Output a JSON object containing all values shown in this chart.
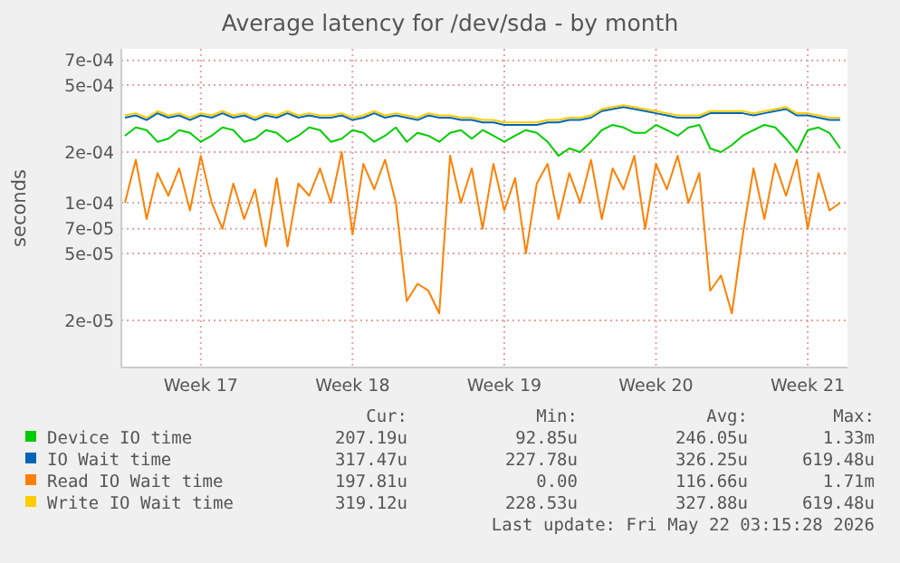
{
  "chart_data": {
    "type": "line",
    "title": "Average latency for /dev/sda - by month",
    "ylabel": "seconds",
    "log": "y",
    "grid": true,
    "legend": "bottom",
    "ylim": [
      1.05e-05,
      0.00082
    ],
    "categories": [
      null,
      null,
      null,
      null,
      null,
      null,
      null,
      "Week 17",
      null,
      null,
      null,
      null,
      null,
      null,
      null,
      null,
      null,
      null,
      null,
      null,
      null,
      "Week 18",
      null,
      null,
      null,
      null,
      null,
      null,
      null,
      null,
      null,
      null,
      null,
      null,
      null,
      "Week 19",
      null,
      null,
      null,
      null,
      null,
      null,
      null,
      null,
      null,
      null,
      null,
      null,
      null,
      "Week 20",
      null,
      null,
      null,
      null,
      null,
      null,
      null,
      null,
      null,
      null,
      null,
      null,
      null,
      "Week 21",
      null,
      null,
      null
    ],
    "yticks": [
      {
        "value": 0.0007,
        "label": "7e-04"
      },
      {
        "value": 0.0005,
        "label": "5e-04"
      },
      {
        "value": 0.0002,
        "label": "2e-04"
      },
      {
        "value": 0.0001,
        "label": "1e-04"
      },
      {
        "value": 7e-05,
        "label": "7e-05"
      },
      {
        "value": 5e-05,
        "label": "5e-05"
      },
      {
        "value": 2e-05,
        "label": "2e-05"
      }
    ],
    "series": [
      {
        "name": "Device IO time",
        "color": "#00cc00",
        "values": [
          0.00025,
          0.00028,
          0.00027,
          0.00023,
          0.00024,
          0.00027,
          0.00026,
          0.00023,
          0.00025,
          0.00028,
          0.00027,
          0.00023,
          0.00024,
          0.00027,
          0.00026,
          0.00023,
          0.00025,
          0.00028,
          0.00027,
          0.00023,
          0.00024,
          0.00027,
          0.00026,
          0.00023,
          0.00025,
          0.00028,
          0.00023,
          0.00026,
          0.00025,
          0.00023,
          0.00026,
          0.00027,
          0.00024,
          0.00027,
          0.00025,
          0.00023,
          0.00025,
          0.00027,
          0.00026,
          0.00023,
          0.00019,
          0.00021,
          0.0002,
          0.00023,
          0.00027,
          0.00029,
          0.00028,
          0.00026,
          0.00026,
          0.00029,
          0.00027,
          0.00025,
          0.00028,
          0.00029,
          0.00021,
          0.0002,
          0.00022,
          0.00025,
          0.00027,
          0.00029,
          0.00028,
          0.00024,
          0.0002,
          0.00027,
          0.00028,
          0.00026,
          0.00021
        ]
      },
      {
        "name": "IO Wait time",
        "color": "#0066b3",
        "values": [
          0.00032,
          0.00033,
          0.00031,
          0.00034,
          0.00032,
          0.00033,
          0.00031,
          0.00033,
          0.00032,
          0.00034,
          0.00032,
          0.00033,
          0.00031,
          0.00033,
          0.00032,
          0.00034,
          0.00032,
          0.00033,
          0.00032,
          0.00032,
          0.00033,
          0.00031,
          0.00032,
          0.00034,
          0.00032,
          0.00033,
          0.00032,
          0.00031,
          0.00033,
          0.00032,
          0.00032,
          0.00031,
          0.00031,
          0.0003,
          0.0003,
          0.00029,
          0.00029,
          0.00029,
          0.00029,
          0.0003,
          0.0003,
          0.00031,
          0.00031,
          0.00032,
          0.00035,
          0.00036,
          0.00037,
          0.00036,
          0.00035,
          0.00034,
          0.00033,
          0.00032,
          0.00032,
          0.00032,
          0.00034,
          0.00034,
          0.00034,
          0.00034,
          0.00033,
          0.00034,
          0.00035,
          0.00036,
          0.00033,
          0.00033,
          0.00032,
          0.00031,
          0.00031
        ]
      },
      {
        "name": "Read IO Wait time",
        "color": "#ff8000",
        "values": [
          0.0001,
          0.00018,
          8e-05,
          0.00015,
          0.00011,
          0.00016,
          9e-05,
          0.00019,
          0.0001,
          7e-05,
          0.00013,
          8e-05,
          0.00012,
          5.5e-05,
          0.00014,
          5.5e-05,
          0.00013,
          0.00011,
          0.00016,
          0.0001,
          0.0002,
          6.5e-05,
          0.00017,
          0.00012,
          0.00018,
          0.0001,
          2.6e-05,
          3.3e-05,
          3e-05,
          2.2e-05,
          0.00019,
          0.0001,
          0.00016,
          7e-05,
          0.00017,
          9e-05,
          0.00014,
          5e-05,
          0.00013,
          0.00017,
          8e-05,
          0.00015,
          0.0001,
          0.00018,
          8e-05,
          0.00016,
          0.00012,
          0.00019,
          7e-05,
          0.00017,
          0.00012,
          0.00019,
          0.0001,
          0.00015,
          3e-05,
          3.7e-05,
          2.2e-05,
          6.4e-05,
          0.00016,
          8e-05,
          0.00017,
          0.00011,
          0.00018,
          7e-05,
          0.00015,
          9e-05,
          0.0001
        ]
      },
      {
        "name": "Write IO Wait time",
        "color": "#ffcc00",
        "values": [
          0.00033,
          0.00034,
          0.00032,
          0.00035,
          0.00033,
          0.00034,
          0.00032,
          0.00034,
          0.00033,
          0.00035,
          0.00033,
          0.00034,
          0.00032,
          0.00034,
          0.00033,
          0.00035,
          0.00033,
          0.00034,
          0.00033,
          0.00033,
          0.00034,
          0.00032,
          0.00033,
          0.00035,
          0.00033,
          0.00034,
          0.00033,
          0.00032,
          0.00034,
          0.00033,
          0.00033,
          0.00032,
          0.00032,
          0.00031,
          0.00031,
          0.0003,
          0.0003,
          0.0003,
          0.0003,
          0.00031,
          0.00031,
          0.00032,
          0.00032,
          0.00033,
          0.00036,
          0.00037,
          0.00038,
          0.00037,
          0.00036,
          0.00035,
          0.00034,
          0.00033,
          0.00033,
          0.00033,
          0.00035,
          0.00035,
          0.00035,
          0.00035,
          0.00034,
          0.00035,
          0.00036,
          0.00037,
          0.00034,
          0.00034,
          0.00033,
          0.00032,
          0.00032
        ]
      }
    ],
    "annotations": [
      "Cur:",
      "Min:",
      "Avg:",
      "Max:",
      "207.19u",
      "92.85u",
      "246.05u",
      "1.33m",
      "317.47u",
      "227.78u",
      "326.25u",
      "619.48u",
      "197.81u",
      "0.00",
      "116.66u",
      "1.71m",
      "319.12u",
      "228.53u",
      "327.88u",
      "619.48u",
      "Last update: Fri May 22 03:15:28 2026"
    ]
  }
}
